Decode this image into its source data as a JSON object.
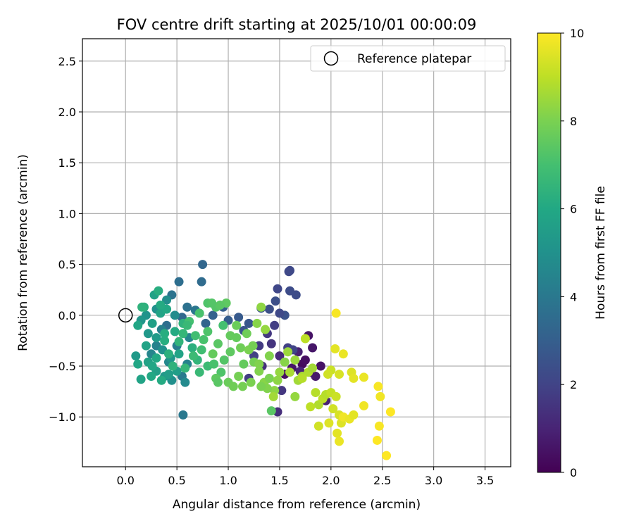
{
  "chart_data": {
    "type": "scatter",
    "title": "FOV centre drift starting at 2025/10/01 00:00:09",
    "xlabel": "Angular distance from reference (arcmin)",
    "ylabel": "Rotation from reference (arcmin)",
    "xlim": [
      -0.42,
      3.75
    ],
    "ylim": [
      -1.49,
      2.72
    ],
    "xticks": [
      "0.0",
      "0.5",
      "1.0",
      "1.5",
      "2.0",
      "2.5",
      "3.0",
      "3.5"
    ],
    "xtick_values": [
      0,
      0.5,
      1,
      1.5,
      2,
      2.5,
      3,
      3.5
    ],
    "yticks": [
      "−1.0",
      "−0.5",
      "0.0",
      "0.5",
      "1.0",
      "1.5",
      "2.0",
      "2.5"
    ],
    "ytick_values": [
      -1,
      -0.5,
      0,
      0.5,
      1,
      1.5,
      2,
      2.5
    ],
    "grid": true,
    "legend": {
      "placement": "top-right",
      "entries": [
        "Reference platepar"
      ]
    },
    "reference_point": {
      "x": 0.0,
      "y": 0.0
    },
    "colorbar": {
      "label": "Hours from first FF file",
      "range": [
        0,
        10
      ],
      "ticks": [
        "0",
        "2",
        "4",
        "6",
        "8",
        "10"
      ],
      "tick_values": [
        0,
        2,
        4,
        6,
        8,
        10
      ],
      "colormap": "viridis"
    },
    "series": [
      {
        "columns": [
          "x",
          "y",
          "hours"
        ],
        "points": [
          [
            1.55,
            -0.58,
            0.4
          ],
          [
            1.62,
            -0.52,
            0.6
          ],
          [
            1.72,
            -0.48,
            0.3
          ],
          [
            1.8,
            -0.56,
            0.8
          ],
          [
            1.9,
            -0.5,
            0.5
          ],
          [
            1.85,
            -0.6,
            0.7
          ],
          [
            1.78,
            -0.2,
            0.5
          ],
          [
            1.82,
            -0.32,
            0.6
          ],
          [
            1.68,
            -0.36,
            0.9
          ],
          [
            1.75,
            -0.44,
            0.4
          ],
          [
            1.95,
            -0.84,
            0.9
          ],
          [
            1.7,
            -0.55,
            1.0
          ],
          [
            1.5,
            -0.4,
            1.2
          ],
          [
            1.42,
            -0.28,
            1.5
          ],
          [
            1.38,
            -0.18,
            1.6
          ],
          [
            1.3,
            -0.3,
            1.7
          ],
          [
            1.25,
            -0.4,
            1.9
          ],
          [
            1.2,
            -0.62,
            1.8
          ],
          [
            1.33,
            -0.5,
            1.4
          ],
          [
            1.48,
            -0.95,
            1.3
          ],
          [
            1.52,
            -0.74,
            1.6
          ],
          [
            1.45,
            -0.1,
            1.8
          ],
          [
            1.58,
            -0.32,
            1.9
          ],
          [
            1.63,
            -0.34,
            2.0
          ],
          [
            1.6,
            0.44,
            2.2
          ],
          [
            1.59,
            0.43,
            2.2
          ],
          [
            1.48,
            0.26,
            2.1
          ],
          [
            1.6,
            0.24,
            2.3
          ],
          [
            1.66,
            0.2,
            2.3
          ],
          [
            1.46,
            0.14,
            2.4
          ],
          [
            1.55,
            0.0,
            2.5
          ],
          [
            1.5,
            0.02,
            2.2
          ],
          [
            1.4,
            0.06,
            2.4
          ],
          [
            1.32,
            0.07,
            2.6
          ],
          [
            1.2,
            -0.08,
            2.7
          ],
          [
            1.1,
            -0.02,
            2.8
          ],
          [
            1.15,
            -0.15,
            2.6
          ],
          [
            0.95,
            0.08,
            3.0
          ],
          [
            1.0,
            -0.05,
            2.9
          ],
          [
            0.85,
            0.0,
            3.1
          ],
          [
            0.78,
            -0.08,
            3.2
          ],
          [
            0.75,
            0.5,
            3.3
          ],
          [
            0.74,
            0.33,
            3.5
          ],
          [
            0.52,
            0.33,
            3.6
          ],
          [
            0.45,
            0.2,
            3.8
          ],
          [
            0.6,
            0.08,
            3.7
          ],
          [
            0.68,
            0.05,
            3.9
          ],
          [
            0.55,
            -0.02,
            3.4
          ],
          [
            0.4,
            -0.1,
            3.6
          ],
          [
            0.56,
            -0.98,
            4.0
          ],
          [
            0.35,
            -0.14,
            4.3
          ],
          [
            0.3,
            -0.3,
            4.4
          ],
          [
            0.25,
            -0.38,
            4.5
          ],
          [
            0.42,
            -0.46,
            4.6
          ],
          [
            0.5,
            -0.3,
            4.2
          ],
          [
            0.6,
            -0.48,
            4.4
          ],
          [
            0.55,
            -0.6,
            4.1
          ],
          [
            0.58,
            -0.66,
            4.7
          ],
          [
            0.62,
            -0.22,
            4.5
          ],
          [
            0.48,
            0.0,
            4.8
          ],
          [
            0.4,
            0.15,
            4.9
          ],
          [
            0.3,
            0.06,
            5.0
          ],
          [
            0.2,
            0.0,
            5.1
          ],
          [
            0.15,
            -0.05,
            5.2
          ],
          [
            0.22,
            -0.18,
            5.3
          ],
          [
            0.3,
            -0.22,
            5.4
          ],
          [
            0.36,
            -0.34,
            5.0
          ],
          [
            0.44,
            -0.42,
            5.2
          ],
          [
            0.5,
            -0.55,
            5.5
          ],
          [
            0.45,
            -0.64,
            4.9
          ],
          [
            0.38,
            -0.6,
            5.3
          ],
          [
            0.3,
            -0.55,
            5.6
          ],
          [
            0.22,
            -0.46,
            5.7
          ],
          [
            0.1,
            -0.4,
            5.4
          ],
          [
            0.12,
            -0.48,
            5.9
          ],
          [
            0.15,
            -0.63,
            5.8
          ],
          [
            0.25,
            -0.6,
            6.0
          ],
          [
            0.35,
            -0.64,
            6.1
          ],
          [
            0.42,
            -0.58,
            5.5
          ],
          [
            0.26,
            -0.08,
            5.6
          ],
          [
            0.34,
            0.02,
            5.8
          ],
          [
            0.4,
            0.06,
            6.0
          ],
          [
            0.28,
            0.2,
            5.7
          ],
          [
            0.32,
            0.24,
            6.2
          ],
          [
            0.12,
            -0.1,
            5.9
          ],
          [
            0.18,
            0.08,
            6.3
          ],
          [
            0.48,
            -0.16,
            6.1
          ],
          [
            0.56,
            -0.08,
            6.4
          ],
          [
            0.38,
            -0.25,
            6.2
          ],
          [
            0.52,
            -0.38,
            5.8
          ],
          [
            0.65,
            -0.32,
            6.3
          ],
          [
            0.7,
            -0.44,
            6.5
          ],
          [
            0.58,
            -0.52,
            6.6
          ],
          [
            0.72,
            -0.56,
            6.7
          ],
          [
            0.8,
            -0.5,
            6.8
          ],
          [
            0.68,
            -0.2,
            6.9
          ],
          [
            0.62,
            -0.06,
            7.0
          ],
          [
            0.72,
            0.02,
            7.1
          ],
          [
            0.8,
            0.12,
            7.2
          ],
          [
            0.88,
            0.08,
            7.3
          ],
          [
            0.95,
            -0.1,
            7.0
          ],
          [
            0.9,
            -0.28,
            7.4
          ],
          [
            0.85,
            -0.38,
            7.6
          ],
          [
            0.93,
            -0.56,
            7.2
          ],
          [
            0.88,
            -0.62,
            7.5
          ],
          [
            1.0,
            -0.66,
            7.7
          ],
          [
            1.05,
            -0.7,
            7.8
          ],
          [
            1.1,
            -0.6,
            7.9
          ],
          [
            1.15,
            -0.48,
            7.6
          ],
          [
            1.12,
            -0.32,
            7.8
          ],
          [
            1.2,
            -0.34,
            8.0
          ],
          [
            1.25,
            -0.46,
            7.9
          ],
          [
            1.3,
            -0.55,
            8.1
          ],
          [
            1.35,
            -0.66,
            8.2
          ],
          [
            1.4,
            -0.62,
            8.0
          ],
          [
            1.42,
            -0.94,
            7.4
          ],
          [
            1.45,
            -0.74,
            8.3
          ],
          [
            1.5,
            -0.56,
            8.4
          ],
          [
            1.55,
            -0.46,
            8.2
          ],
          [
            1.58,
            -0.36,
            8.5
          ],
          [
            1.65,
            -0.8,
            8.4
          ],
          [
            1.68,
            -0.64,
            8.6
          ],
          [
            1.72,
            -0.6,
            8.7
          ],
          [
            1.78,
            -0.56,
            8.8
          ],
          [
            1.82,
            -0.52,
            8.6
          ],
          [
            1.85,
            -0.76,
            8.9
          ],
          [
            1.88,
            -0.88,
            8.8
          ],
          [
            1.92,
            -0.82,
            9.0
          ],
          [
            1.95,
            -0.78,
            8.9
          ],
          [
            2.0,
            -0.76,
            9.1
          ],
          [
            2.05,
            -0.8,
            9.2
          ],
          [
            2.02,
            -0.92,
            9.3
          ],
          [
            2.08,
            -0.98,
            9.4
          ],
          [
            2.1,
            -1.06,
            9.5
          ],
          [
            2.06,
            -1.16,
            9.6
          ],
          [
            2.08,
            -1.24,
            9.7
          ],
          [
            2.12,
            -1.0,
            9.8
          ],
          [
            2.18,
            -1.02,
            9.7
          ],
          [
            2.22,
            -0.98,
            9.6
          ],
          [
            2.32,
            -0.89,
            9.8
          ],
          [
            2.2,
            -0.56,
            9.5
          ],
          [
            2.22,
            -0.62,
            9.6
          ],
          [
            2.32,
            -0.61,
            9.7
          ],
          [
            2.46,
            -0.7,
            9.9
          ],
          [
            2.48,
            -0.8,
            9.8
          ],
          [
            2.47,
            -1.09,
            9.9
          ],
          [
            2.45,
            -1.23,
            10.0
          ],
          [
            2.54,
            -1.38,
            10.0
          ],
          [
            2.58,
            -0.95,
            10.0
          ],
          [
            2.05,
            0.02,
            9.9
          ],
          [
            2.04,
            -0.33,
            9.6
          ],
          [
            2.12,
            -0.38,
            9.7
          ],
          [
            2.08,
            -0.58,
            9.4
          ],
          [
            2.0,
            -0.54,
            9.2
          ],
          [
            1.97,
            -0.58,
            9.3
          ],
          [
            1.88,
            -1.09,
            9.3
          ],
          [
            1.98,
            -1.06,
            9.5
          ],
          [
            1.75,
            -0.23,
            9.0
          ],
          [
            1.72,
            -0.62,
            8.9
          ],
          [
            1.8,
            -0.9,
            9.0
          ],
          [
            1.6,
            -0.56,
            8.7
          ],
          [
            1.65,
            -0.44,
            8.5
          ],
          [
            1.48,
            -0.64,
            8.3
          ],
          [
            1.44,
            -0.8,
            8.6
          ],
          [
            1.38,
            -0.72,
            8.1
          ],
          [
            1.32,
            -0.7,
            8.0
          ],
          [
            1.28,
            -0.08,
            8.2
          ],
          [
            1.32,
            0.08,
            8.3
          ],
          [
            1.36,
            -0.14,
            8.4
          ],
          [
            1.4,
            -0.4,
            8.1
          ],
          [
            1.24,
            -0.3,
            7.9
          ],
          [
            1.18,
            -0.18,
            7.8
          ],
          [
            1.08,
            -0.1,
            7.7
          ],
          [
            1.02,
            -0.2,
            7.6
          ],
          [
            0.98,
            0.12,
            7.5
          ],
          [
            0.92,
            0.1,
            7.4
          ],
          [
            0.84,
            0.12,
            7.3
          ],
          [
            0.8,
            -0.16,
            7.2
          ],
          [
            0.76,
            -0.24,
            7.1
          ],
          [
            0.74,
            -0.34,
            6.9
          ],
          [
            0.66,
            -0.4,
            6.8
          ],
          [
            0.6,
            -0.1,
            6.7
          ],
          [
            0.56,
            -0.18,
            6.6
          ],
          [
            0.52,
            -0.26,
            6.5
          ],
          [
            0.46,
            -0.5,
            6.4
          ],
          [
            0.42,
            -0.38,
            6.3
          ],
          [
            0.38,
            -0.18,
            6.2
          ],
          [
            0.34,
            0.1,
            6.1
          ],
          [
            0.3,
            -0.42,
            6.0
          ],
          [
            0.26,
            -0.5,
            5.9
          ],
          [
            0.2,
            -0.3,
            5.8
          ],
          [
            0.16,
            0.08,
            6.4
          ],
          [
            0.96,
            -0.44,
            7.3
          ],
          [
            1.02,
            -0.36,
            7.5
          ],
          [
            1.08,
            -0.22,
            7.6
          ],
          [
            0.86,
            -0.48,
            7.1
          ],
          [
            0.9,
            -0.66,
            7.4
          ],
          [
            1.14,
            -0.7,
            7.9
          ],
          [
            1.22,
            -0.66,
            8.0
          ],
          [
            1.3,
            -0.48,
            8.1
          ]
        ]
      }
    ]
  }
}
